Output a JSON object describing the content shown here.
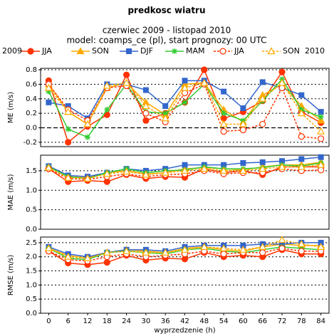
{
  "title": "predkosc wiatru",
  "subtitle": [
    "czerwiec 2009 - listopad 2010",
    "model: coamps_ce (pl), start prognozy: 00 UTC"
  ],
  "legend": {
    "start": "2009",
    "end": "2010",
    "entries": [
      {
        "name": "JJA",
        "color": "#ff3300",
        "marker": "circle",
        "dashed": false
      },
      {
        "name": "SON",
        "color": "#ffaa00",
        "marker": "triangle",
        "dashed": false
      },
      {
        "name": "DJF",
        "color": "#3366cc",
        "marker": "square",
        "dashed": false
      },
      {
        "name": "MAM",
        "color": "#33cc33",
        "marker": "star",
        "dashed": false
      },
      {
        "name": "JJA",
        "color": "#ff3300",
        "marker": "open-circle",
        "dashed": true
      },
      {
        "name": "SON",
        "color": "#ffaa00",
        "marker": "open-triangle",
        "dashed": true
      }
    ]
  },
  "chart_data": [
    {
      "type": "line",
      "ylabel": "ME (m/s)",
      "x": [
        0,
        6,
        12,
        18,
        24,
        30,
        36,
        42,
        48,
        54,
        60,
        66,
        72,
        78,
        84
      ],
      "xlim": [
        -2.5,
        86.5
      ],
      "ylim": [
        -0.26,
        0.82
      ],
      "yticks": [
        -0.2,
        {
          "value": 0,
          "label": "0.0"
        },
        0.2,
        0.4,
        0.6,
        0.8
      ],
      "grid": true,
      "zero_line": true,
      "series": [
        {
          "values": [
            0.65,
            -0.2,
            0.02,
            0.18,
            0.73,
            0.1,
            0.2,
            0.35,
            0.8,
            0.13,
            0.22,
            0.37,
            0.77,
            0.22,
            0.07
          ]
        },
        {
          "values": [
            0.6,
            0.22,
            0.05,
            0.55,
            0.62,
            0.35,
            0.18,
            0.6,
            0.62,
            0.25,
            0.08,
            0.45,
            0.6,
            0.3,
            0.1
          ]
        },
        {
          "values": [
            0.35,
            0.3,
            0.13,
            0.6,
            0.6,
            0.52,
            0.3,
            0.65,
            0.65,
            0.5,
            0.27,
            0.63,
            0.55,
            0.45,
            0.22
          ]
        },
        {
          "values": [
            0.5,
            -0.02,
            -0.13,
            0.25,
            0.6,
            0.22,
            0.2,
            0.35,
            0.6,
            0.2,
            0.1,
            0.37,
            0.67,
            0.25,
            0.15
          ]
        },
        {
          "values": [
            0.6,
            0.25,
            0.1,
            0.55,
            0.58,
            0.2,
            0.08,
            0.48,
            0.6,
            -0.05,
            -0.03,
            0.05,
            0.55,
            -0.12,
            -0.15
          ]
        },
        {
          "values": [
            0.55,
            0.22,
            0.05,
            0.58,
            0.62,
            0.3,
            0.13,
            0.55,
            0.62,
            0.05,
            0.05,
            0.4,
            0.62,
            0.2,
            -0.05
          ]
        }
      ]
    },
    {
      "type": "line",
      "ylabel": "MAE (m/s)",
      "x": [
        0,
        6,
        12,
        18,
        24,
        30,
        36,
        42,
        48,
        54,
        60,
        66,
        72,
        78,
        84
      ],
      "xlim": [
        -2.5,
        86.5
      ],
      "ylim": [
        0,
        1.9
      ],
      "yticks": [
        {
          "value": 0,
          "label": "0.0"
        },
        0.5,
        {
          "value": 1,
          "label": "1.0"
        },
        1.5
      ],
      "grid": true,
      "series": [
        {
          "values": [
            1.55,
            1.22,
            1.25,
            1.22,
            1.4,
            1.3,
            1.35,
            1.33,
            1.55,
            1.45,
            1.5,
            1.4,
            1.6,
            1.6,
            1.6
          ]
        },
        {
          "values": [
            1.6,
            1.35,
            1.32,
            1.45,
            1.5,
            1.42,
            1.45,
            1.55,
            1.58,
            1.55,
            1.52,
            1.6,
            1.65,
            1.65,
            1.72
          ]
        },
        {
          "values": [
            1.62,
            1.38,
            1.35,
            1.45,
            1.55,
            1.5,
            1.55,
            1.65,
            1.65,
            1.65,
            1.7,
            1.72,
            1.75,
            1.8,
            1.85
          ]
        },
        {
          "values": [
            1.6,
            1.35,
            1.3,
            1.45,
            1.55,
            1.45,
            1.5,
            1.52,
            1.6,
            1.55,
            1.55,
            1.58,
            1.65,
            1.62,
            1.7
          ]
        },
        {
          "values": [
            1.55,
            1.3,
            1.28,
            1.35,
            1.42,
            1.35,
            1.4,
            1.42,
            1.5,
            1.42,
            1.45,
            1.45,
            1.55,
            1.5,
            1.52
          ]
        },
        {
          "values": [
            1.58,
            1.32,
            1.3,
            1.42,
            1.48,
            1.4,
            1.45,
            1.5,
            1.55,
            1.5,
            1.5,
            1.55,
            1.6,
            1.6,
            1.65
          ]
        }
      ]
    },
    {
      "type": "line",
      "ylabel": "RMSE (m/s)",
      "xlabel": "wyprzedzenie (h)",
      "x": [
        0,
        6,
        12,
        18,
        24,
        30,
        36,
        42,
        48,
        54,
        60,
        66,
        72,
        78,
        84
      ],
      "xlim": [
        -2.5,
        86.5
      ],
      "xticks": [
        0,
        6,
        12,
        18,
        24,
        30,
        36,
        42,
        48,
        54,
        60,
        66,
        72,
        78,
        84
      ],
      "ylim": [
        0,
        2.7
      ],
      "yticks": [
        {
          "value": 0,
          "label": "0.0"
        },
        0.5,
        {
          "value": 1,
          "label": "1.0"
        },
        1.5,
        {
          "value": 2,
          "label": "2.0"
        },
        2.5
      ],
      "grid": true,
      "series": [
        {
          "values": [
            2.2,
            1.78,
            1.72,
            1.8,
            2.05,
            1.88,
            1.95,
            1.92,
            2.15,
            2.0,
            2.05,
            2.0,
            2.25,
            2.1,
            2.1
          ]
        },
        {
          "values": [
            2.3,
            2.05,
            1.95,
            2.15,
            2.25,
            2.2,
            2.15,
            2.3,
            2.35,
            2.25,
            2.2,
            2.35,
            2.45,
            2.4,
            2.4
          ]
        },
        {
          "values": [
            2.35,
            2.1,
            2.0,
            2.15,
            2.25,
            2.25,
            2.2,
            2.35,
            2.4,
            2.4,
            2.4,
            2.45,
            2.45,
            2.5,
            2.5
          ]
        },
        {
          "values": [
            2.3,
            1.95,
            1.9,
            2.15,
            2.2,
            2.15,
            2.1,
            2.25,
            2.3,
            2.2,
            2.15,
            2.25,
            2.35,
            2.3,
            2.25
          ]
        },
        {
          "values": [
            2.2,
            1.9,
            1.85,
            2.0,
            2.1,
            2.0,
            2.05,
            2.1,
            2.2,
            2.1,
            2.15,
            2.15,
            2.3,
            2.2,
            2.2
          ]
        },
        {
          "values": [
            2.3,
            2.0,
            1.95,
            2.15,
            2.2,
            2.15,
            2.15,
            2.25,
            2.35,
            2.3,
            2.25,
            2.35,
            2.6,
            2.45,
            2.35
          ]
        }
      ]
    }
  ]
}
